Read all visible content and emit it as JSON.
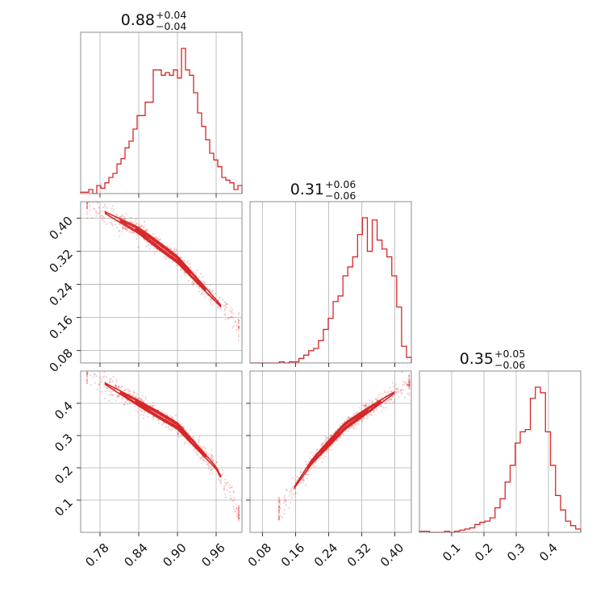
{
  "chart_data": {
    "type": "corner",
    "color": "#d62728",
    "parameters": [
      {
        "title": {
          "median": "0.88",
          "plus": "+0.04",
          "minus": "−0.04"
        },
        "range": [
          0.75,
          1.0
        ],
        "ticks": [
          0.78,
          0.84,
          0.9,
          0.96
        ],
        "tick_labels": [
          "0.78",
          "0.84",
          "0.90",
          "0.96"
        ],
        "histogram": {
          "edges": [
            0.75,
            1.0
          ],
          "counts": [
            1,
            1,
            3,
            0,
            6,
            4,
            8,
            12,
            15,
            22,
            26,
            34,
            39,
            48,
            58,
            58,
            68,
            68,
            92,
            92,
            88,
            90,
            88,
            92,
            86,
            108,
            92,
            88,
            75,
            60,
            50,
            40,
            30,
            25,
            20,
            12,
            10,
            8,
            3,
            6
          ]
        }
      },
      {
        "title": {
          "median": "0.31",
          "plus": "+0.06",
          "minus": "−0.06"
        },
        "range": [
          0.05,
          0.44
        ],
        "ticks": [
          0.08,
          0.16,
          0.24,
          0.32,
          0.4
        ],
        "tick_labels": [
          "0.08",
          "0.16",
          "0.24",
          "0.32",
          "0.40"
        ],
        "tick_labels_y": [
          "0.08",
          "0.16",
          "0.24",
          "0.32",
          "0.40"
        ],
        "histogram": {
          "edges": [
            0.05,
            0.44
          ],
          "counts": [
            0,
            0,
            0,
            0,
            0,
            0,
            1,
            0,
            1,
            1,
            4,
            7,
            11,
            13,
            20,
            30,
            40,
            55,
            60,
            78,
            86,
            95,
            115,
            130,
            100,
            128,
            110,
            102,
            95,
            78,
            50,
            15,
            5
          ]
        }
      },
      {
        "title": {
          "median": "0.35",
          "plus": "+0.05",
          "minus": "−0.06"
        },
        "range": [
          0.0,
          0.5
        ],
        "ticks": [
          0.1,
          0.2,
          0.3,
          0.4
        ],
        "tick_labels": [
          "0.1",
          "0.2",
          "0.3",
          "0.4"
        ],
        "tick_labels_y": [
          "0.1",
          "0.2",
          "0.3",
          "0.4"
        ],
        "histogram": {
          "edges": [
            0.0,
            0.5
          ],
          "counts": [
            1,
            1,
            0,
            0,
            0,
            1,
            0,
            1,
            2,
            3,
            4,
            7,
            9,
            10,
            13,
            22,
            30,
            45,
            60,
            80,
            90,
            92,
            120,
            130,
            125,
            90,
            60,
            33,
            20,
            10,
            6,
            3
          ]
        }
      }
    ],
    "pairs": [
      {
        "x": 0,
        "y": 1,
        "curve": {
          "x": [
            0.78,
            0.84,
            0.9,
            0.96,
            0.99
          ],
          "y": [
            0.42,
            0.37,
            0.3,
            0.2,
            0.15
          ]
        },
        "width": [
          0.008,
          0.007
        ],
        "scatter_extent": [
          0.76,
          0.995
        ]
      },
      {
        "x": 0,
        "y": 2,
        "curve": {
          "x": [
            0.78,
            0.84,
            0.9,
            0.96,
            0.99
          ],
          "y": [
            0.47,
            0.4,
            0.33,
            0.2,
            0.08
          ]
        },
        "width": [
          0.01,
          0.008
        ],
        "scatter_extent": [
          0.76,
          0.995
        ]
      },
      {
        "x": 1,
        "y": 2,
        "curve": {
          "x": [
            0.12,
            0.2,
            0.28,
            0.36,
            0.43
          ],
          "y": [
            0.07,
            0.22,
            0.33,
            0.4,
            0.46
          ]
        },
        "width": [
          0.01,
          0.008
        ],
        "scatter_extent": [
          0.12,
          0.435
        ]
      }
    ]
  }
}
